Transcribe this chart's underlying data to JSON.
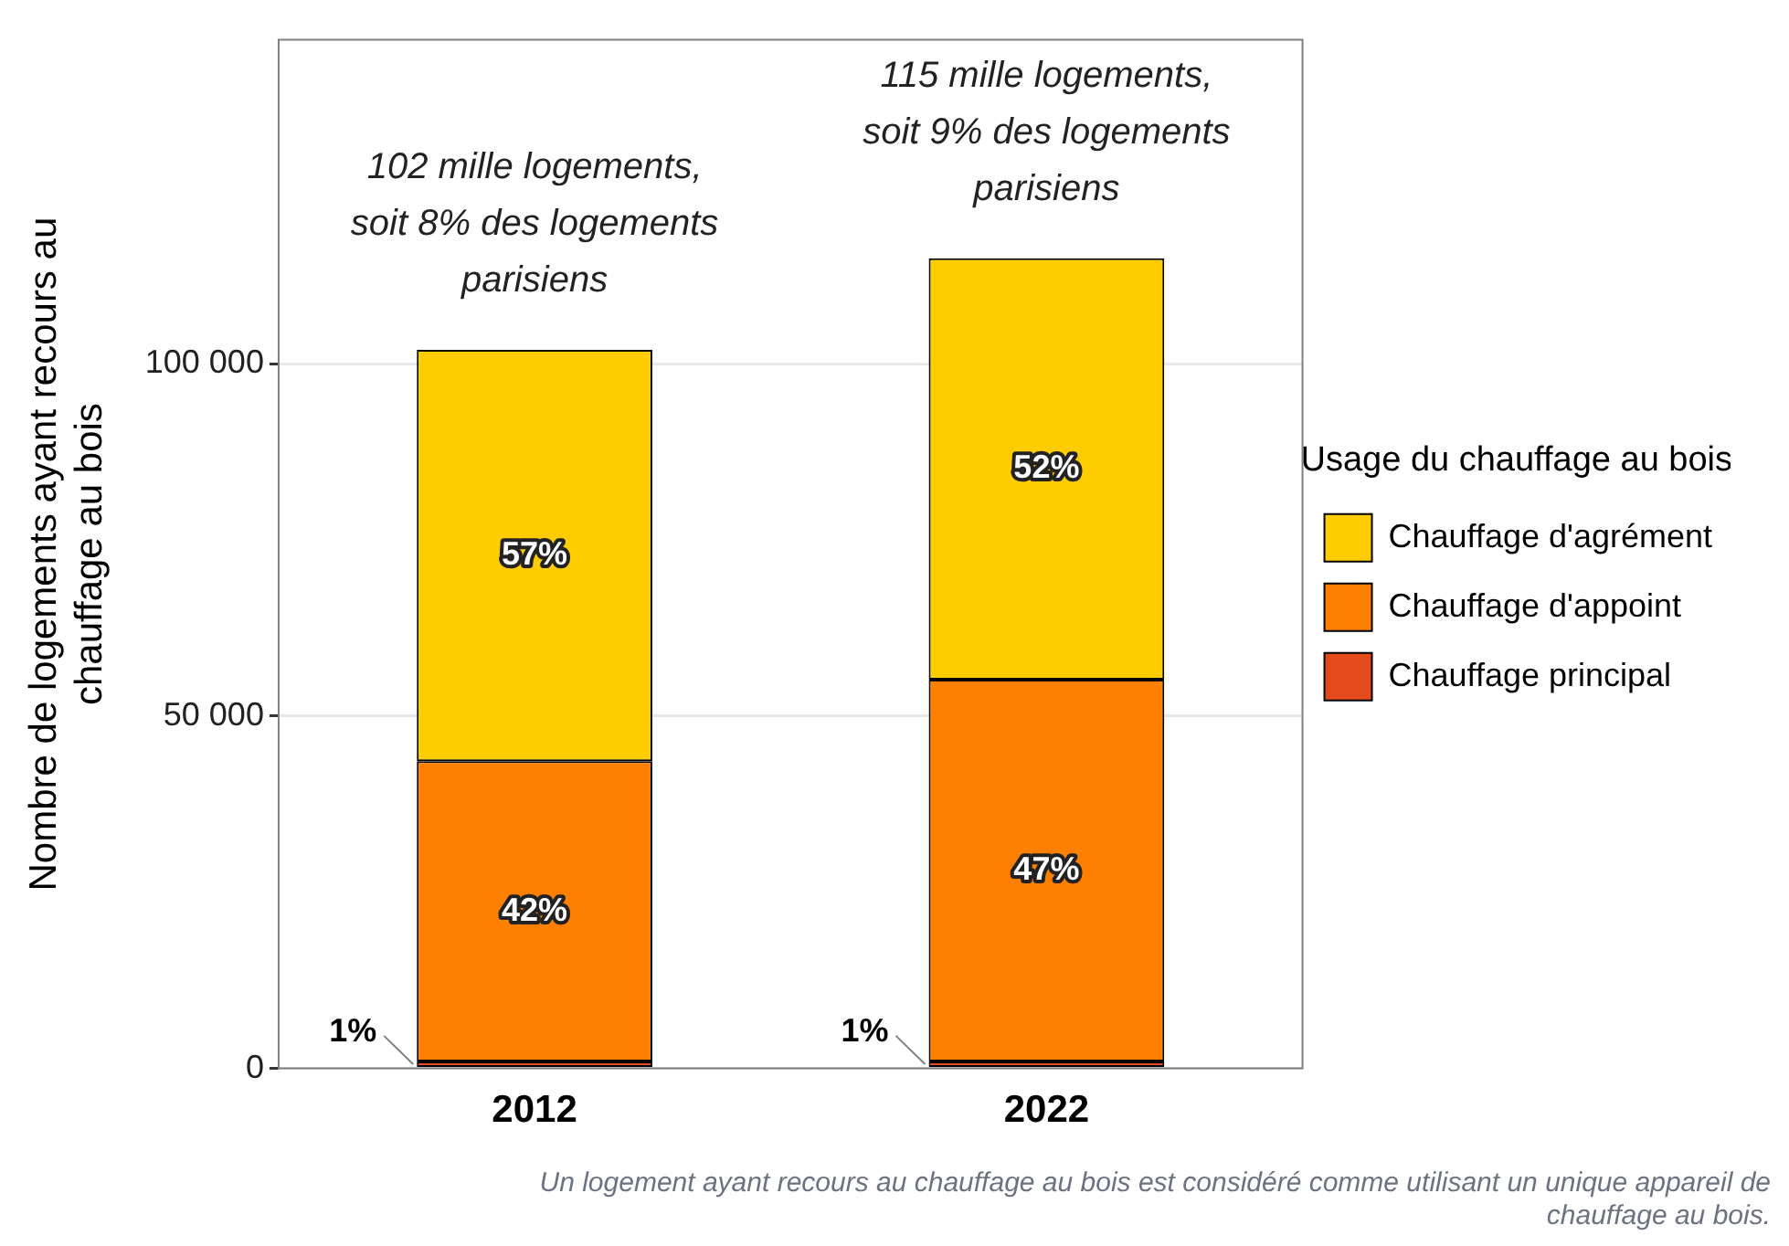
{
  "chart_data": {
    "type": "bar",
    "stacked": true,
    "categories": [
      "2012",
      "2022"
    ],
    "series": [
      {
        "name": "Chauffage principal",
        "color": "#e34a1c",
        "values": [
          1000,
          1000
        ]
      },
      {
        "name": "Chauffage d'appoint",
        "color": "#ff7f00",
        "values": [
          42600,
          54200
        ]
      },
      {
        "name": "Chauffage d'agrément",
        "color": "#ffcc00",
        "values": [
          58400,
          59800
        ]
      }
    ],
    "ylabel": "Nombre de logements ayant recours au chauffage au bois",
    "legend_title": "Usage du chauffage au bois",
    "ylim": [
      0,
      146000
    ],
    "yticks": [
      {
        "value": 0,
        "label": "0"
      },
      {
        "value": 50000,
        "label": "50 000"
      },
      {
        "value": 100000,
        "label": "100 000"
      }
    ],
    "grid": "y",
    "legend": "right",
    "annotations": [
      "1%",
      "1%",
      "42%",
      "47%",
      "57%",
      "52%",
      {
        "text": "102 mille logements, soit 8% des logements parisiens",
        "x": "2012",
        "y": 102000
      },
      {
        "text": "115 mille logements, soit 9% des logements parisiens",
        "x": "2022",
        "y": 115000
      },
      "Un logement ayant recours au chauffage au bois est considéré comme utilisant un unique appareil de chauffage au bois."
    ]
  }
}
